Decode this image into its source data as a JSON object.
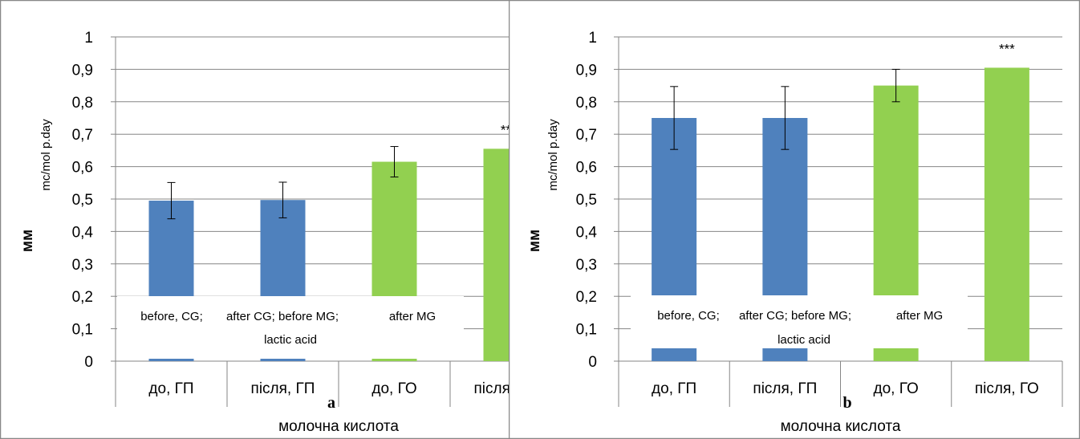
{
  "chart_data": [
    {
      "type": "bar",
      "panel_label": "a",
      "ylabel": "мм",
      "ylabel_superscript": "mc/mol p.day",
      "xlabel": "молочна кислота",
      "categories": [
        "до, ГП",
        "після, ГП",
        "до, ГО",
        "після, ГО"
      ],
      "yticks": [
        "1",
        "0,9",
        "0,8",
        "0,7",
        "0,6",
        "0,5",
        "0,4",
        "0,3",
        "0,2",
        "0,1",
        "0"
      ],
      "ylim": [
        0,
        1
      ],
      "grid": true,
      "values": [
        0.495,
        0.497,
        0.615,
        0.655
      ],
      "errors": [
        0.056,
        0.055,
        0.047,
        null
      ],
      "bar_colors": [
        "#4f81bd",
        "#4f81bd",
        "#92d050",
        "#92d050"
      ],
      "significance": [
        "",
        "",
        "",
        "**"
      ],
      "overlay_label": {
        "line1": [
          "before, CG;",
          "after CG; before MG;",
          "after MG"
        ],
        "line2": "lactic acid"
      }
    },
    {
      "type": "bar",
      "panel_label": "b",
      "ylabel": "мм",
      "ylabel_superscript": "mc/mol p.day",
      "xlabel": "молочна кислота",
      "categories": [
        "до, ГП",
        "після, ГП",
        "до, ГО",
        "після, ГО"
      ],
      "yticks": [
        "1",
        "0,9",
        "0,8",
        "0,7",
        "0,6",
        "0,5",
        "0,4",
        "0,3",
        "0,2",
        "0,1",
        "0"
      ],
      "ylim": [
        0,
        1
      ],
      "grid": true,
      "values": [
        0.75,
        0.75,
        0.85,
        0.905
      ],
      "errors": [
        0.097,
        0.097,
        0.05,
        null
      ],
      "bar_colors": [
        "#4f81bd",
        "#4f81bd",
        "#92d050",
        "#92d050"
      ],
      "significance": [
        "",
        "",
        "",
        "***"
      ],
      "overlay_label": {
        "line1": [
          "before, CG;",
          "after CG; before MG;",
          "after MG"
        ],
        "line2": "lactic acid"
      }
    }
  ]
}
